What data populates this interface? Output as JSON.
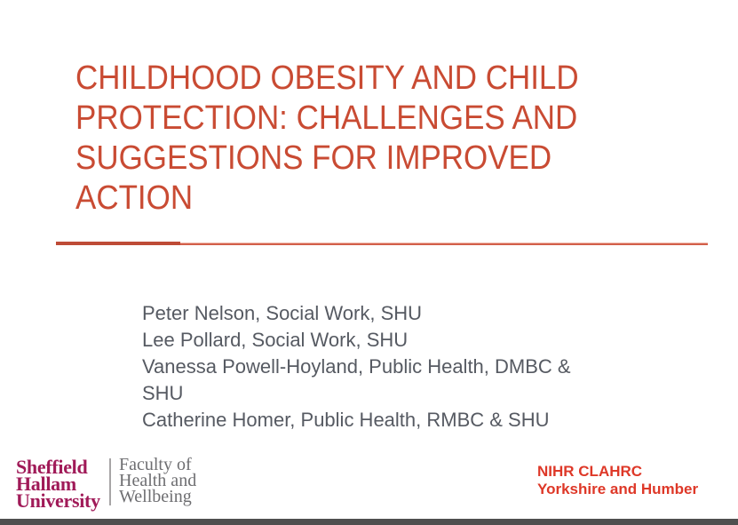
{
  "slide": {
    "title": {
      "lines": [
        "CHILDHOOD OBESITY AND CHILD",
        "PROTECTION: CHALLENGES AND",
        "SUGGESTIONS FOR IMPROVED",
        "ACTION"
      ]
    },
    "authors": [
      "Peter Nelson, Social Work, SHU",
      "Lee Pollard, Social Work, SHU",
      "Vanessa Powell-Hoyland, Public Health, DMBC & SHU",
      "Catherine Homer, Public Health, RMBC & SHU"
    ],
    "footer": {
      "university_logo": {
        "lines": [
          "Sheffield",
          "Hallam",
          "University"
        ]
      },
      "faculty": {
        "lines": [
          "Faculty of",
          "Health and",
          "Wellbeing"
        ]
      },
      "nihr": {
        "lines": [
          "NIHR CLAHRC",
          "Yorkshire and Humber"
        ]
      }
    }
  },
  "colors": {
    "title": "#C94B33",
    "rule_left": "#BE4B36",
    "rule_right": "#D2604A",
    "rule_halo": "#F0B7AA",
    "authors": "#565A62",
    "shu_logo": "#A01A58",
    "faculty": "#6E6E71",
    "logo_divider": "#A7A5A6",
    "nihr": "#DE3828",
    "bottom_bar": "#4F4F4F"
  }
}
